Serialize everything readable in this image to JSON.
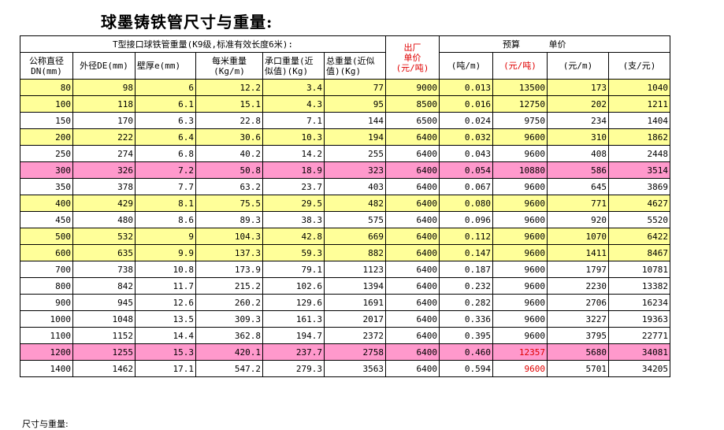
{
  "title": "球墨铸铁管尺寸与重量:",
  "header": {
    "group_left": "T型接口球铁管重量(K9级,标准有效长度6米):",
    "factory_line1": "出厂",
    "factory_line2": "单价",
    "budget_label": "预算",
    "unit_price_label": "单价",
    "col_dn_1": "公称直径",
    "col_dn_2": "DN(mm)",
    "col_od": "外径DE(mm)",
    "col_wall": "壁厚e(mm)",
    "col_wpm_1": "每米重量",
    "col_wpm_2": "(Kg/m)",
    "col_socket_1": "承口重量(近",
    "col_socket_2": "似值)(Kg)",
    "col_total_1": "总重量(近似",
    "col_total_2": "值)(Kg)",
    "col_factory_unit": "(元/吨)",
    "col_tpm": "(吨/m)",
    "col_budget_unit": "(元/吨)",
    "col_ypm": "(元/m)",
    "col_ypc": "(支/元)"
  },
  "rows": [
    {
      "dn": "80",
      "od": "98",
      "e": "6",
      "wpm": "12.2",
      "socket": "3.4",
      "total": "77",
      "factory": "9000",
      "tpm": "0.013",
      "budget": "13500",
      "ypm": "173",
      "ypc": "1040",
      "hl": "yellow",
      "budget_red": false
    },
    {
      "dn": "100",
      "od": "118",
      "e": "6.1",
      "wpm": "15.1",
      "socket": "4.3",
      "total": "95",
      "factory": "8500",
      "tpm": "0.016",
      "budget": "12750",
      "ypm": "202",
      "ypc": "1211",
      "hl": "yellow",
      "budget_red": false
    },
    {
      "dn": "150",
      "od": "170",
      "e": "6.3",
      "wpm": "22.8",
      "socket": "7.1",
      "total": "144",
      "factory": "6500",
      "tpm": "0.024",
      "budget": "9750",
      "ypm": "234",
      "ypc": "1404",
      "hl": "",
      "budget_red": false
    },
    {
      "dn": "200",
      "od": "222",
      "e": "6.4",
      "wpm": "30.6",
      "socket": "10.3",
      "total": "194",
      "factory": "6400",
      "tpm": "0.032",
      "budget": "9600",
      "ypm": "310",
      "ypc": "1862",
      "hl": "yellow",
      "budget_red": false
    },
    {
      "dn": "250",
      "od": "274",
      "e": "6.8",
      "wpm": "40.2",
      "socket": "14.2",
      "total": "255",
      "factory": "6400",
      "tpm": "0.043",
      "budget": "9600",
      "ypm": "408",
      "ypc": "2448",
      "hl": "",
      "budget_red": false
    },
    {
      "dn": "300",
      "od": "326",
      "e": "7.2",
      "wpm": "50.8",
      "socket": "18.9",
      "total": "323",
      "factory": "6400",
      "tpm": "0.054",
      "budget": "10880",
      "ypm": "586",
      "ypc": "3514",
      "hl": "pink",
      "budget_red": false
    },
    {
      "dn": "350",
      "od": "378",
      "e": "7.7",
      "wpm": "63.2",
      "socket": "23.7",
      "total": "403",
      "factory": "6400",
      "tpm": "0.067",
      "budget": "9600",
      "ypm": "645",
      "ypc": "3869",
      "hl": "",
      "budget_red": false
    },
    {
      "dn": "400",
      "od": "429",
      "e": "8.1",
      "wpm": "75.5",
      "socket": "29.5",
      "total": "482",
      "factory": "6400",
      "tpm": "0.080",
      "budget": "9600",
      "ypm": "771",
      "ypc": "4627",
      "hl": "yellow",
      "budget_red": false
    },
    {
      "dn": "450",
      "od": "480",
      "e": "8.6",
      "wpm": "89.3",
      "socket": "38.3",
      "total": "575",
      "factory": "6400",
      "tpm": "0.096",
      "budget": "9600",
      "ypm": "920",
      "ypc": "5520",
      "hl": "",
      "budget_red": false
    },
    {
      "dn": "500",
      "od": "532",
      "e": "9",
      "wpm": "104.3",
      "socket": "42.8",
      "total": "669",
      "factory": "6400",
      "tpm": "0.112",
      "budget": "9600",
      "ypm": "1070",
      "ypc": "6422",
      "hl": "yellow",
      "budget_red": false
    },
    {
      "dn": "600",
      "od": "635",
      "e": "9.9",
      "wpm": "137.3",
      "socket": "59.3",
      "total": "882",
      "factory": "6400",
      "tpm": "0.147",
      "budget": "9600",
      "ypm": "1411",
      "ypc": "8467",
      "hl": "yellow",
      "budget_red": false
    },
    {
      "dn": "700",
      "od": "738",
      "e": "10.8",
      "wpm": "173.9",
      "socket": "79.1",
      "total": "1123",
      "factory": "6400",
      "tpm": "0.187",
      "budget": "9600",
      "ypm": "1797",
      "ypc": "10781",
      "hl": "",
      "budget_red": false
    },
    {
      "dn": "800",
      "od": "842",
      "e": "11.7",
      "wpm": "215.2",
      "socket": "102.6",
      "total": "1394",
      "factory": "6400",
      "tpm": "0.232",
      "budget": "9600",
      "ypm": "2230",
      "ypc": "13382",
      "hl": "",
      "budget_red": false
    },
    {
      "dn": "900",
      "od": "945",
      "e": "12.6",
      "wpm": "260.2",
      "socket": "129.6",
      "total": "1691",
      "factory": "6400",
      "tpm": "0.282",
      "budget": "9600",
      "ypm": "2706",
      "ypc": "16234",
      "hl": "",
      "budget_red": false
    },
    {
      "dn": "1000",
      "od": "1048",
      "e": "13.5",
      "wpm": "309.3",
      "socket": "161.3",
      "total": "2017",
      "factory": "6400",
      "tpm": "0.336",
      "budget": "9600",
      "ypm": "3227",
      "ypc": "19363",
      "hl": "",
      "budget_red": false
    },
    {
      "dn": "1100",
      "od": "1152",
      "e": "14.4",
      "wpm": "362.8",
      "socket": "194.7",
      "total": "2372",
      "factory": "6400",
      "tpm": "0.395",
      "budget": "9600",
      "ypm": "3795",
      "ypc": "22771",
      "hl": "",
      "budget_red": false
    },
    {
      "dn": "1200",
      "od": "1255",
      "e": "15.3",
      "wpm": "420.1",
      "socket": "237.7",
      "total": "2758",
      "factory": "6400",
      "tpm": "0.460",
      "budget": "12357",
      "ypm": "5680",
      "ypc": "34081",
      "hl": "pink",
      "budget_red": true
    },
    {
      "dn": "1400",
      "od": "1462",
      "e": "17.1",
      "wpm": "547.2",
      "socket": "279.3",
      "total": "3563",
      "factory": "6400",
      "tpm": "0.594",
      "budget": "9600",
      "ypm": "5701",
      "ypc": "34205",
      "hl": "",
      "budget_red": true
    }
  ],
  "footnote": "尺寸与重量:",
  "colors": {
    "yellow": "#ffff99",
    "pink": "#ff99cc",
    "red": "#e00000"
  }
}
